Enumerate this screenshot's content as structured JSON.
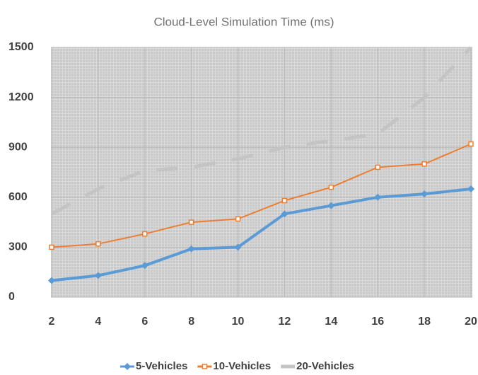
{
  "chart_data": {
    "type": "line",
    "title": "Cloud-Level Simulation Time (ms)",
    "x": [
      2,
      4,
      6,
      8,
      10,
      12,
      14,
      16,
      18,
      20
    ],
    "series": [
      {
        "name": "5-Vehicles",
        "color": "#5b9bd5",
        "marker": "diamond",
        "dash": false,
        "values": [
          100,
          130,
          190,
          290,
          300,
          500,
          550,
          600,
          620,
          650
        ]
      },
      {
        "name": "10-Vehicles",
        "color": "#ed7d31",
        "marker": "square",
        "dash": false,
        "values": [
          300,
          320,
          380,
          450,
          470,
          580,
          660,
          780,
          800,
          920
        ]
      },
      {
        "name": "20-Vehicles",
        "color": "#c4c4c4",
        "marker": "none",
        "dash": true,
        "values": [
          500,
          650,
          760,
          780,
          830,
          900,
          940,
          980,
          1200,
          1500
        ]
      }
    ],
    "xlim": [
      2,
      20
    ],
    "xticks": [
      2,
      4,
      6,
      8,
      10,
      12,
      14,
      16,
      18,
      20
    ],
    "ylim": [
      0,
      1500
    ],
    "yticks": [
      0,
      300,
      600,
      900,
      1200,
      1500
    ],
    "grid": true,
    "legend": "bottom"
  }
}
